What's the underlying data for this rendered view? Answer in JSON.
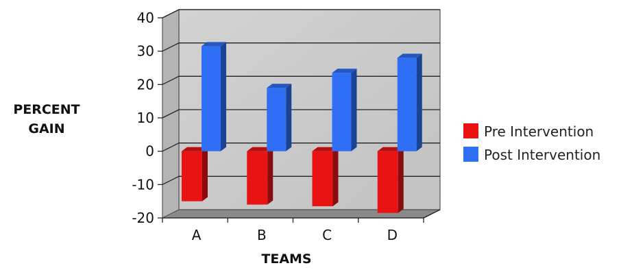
{
  "chart_data": {
    "type": "bar",
    "categories": [
      "A",
      "B",
      "C",
      "D"
    ],
    "series": [
      {
        "name": "Pre Intervention",
        "values": [
          -15,
          -16,
          -16.5,
          -18.5
        ],
        "color": "#e81414"
      },
      {
        "name": "Post Intervention",
        "values": [
          31.5,
          19,
          23.5,
          28
        ],
        "color": "#2f6ff5"
      }
    ],
    "ylim": [
      -20,
      40
    ],
    "yticks": [
      40,
      30,
      20,
      10,
      0,
      -10,
      -20
    ],
    "ytick_labels": [
      "40",
      "30",
      "20",
      "10",
      "0",
      "-10",
      "-20"
    ],
    "ylabel_lines": [
      "PERCENT",
      "GAIN"
    ],
    "xlabel": "TEAMS",
    "grid": true,
    "legend": "right",
    "style": "3d-column",
    "colors": {
      "plot_background": "#c8c8c8",
      "floor": "#8a8a8a"
    }
  }
}
